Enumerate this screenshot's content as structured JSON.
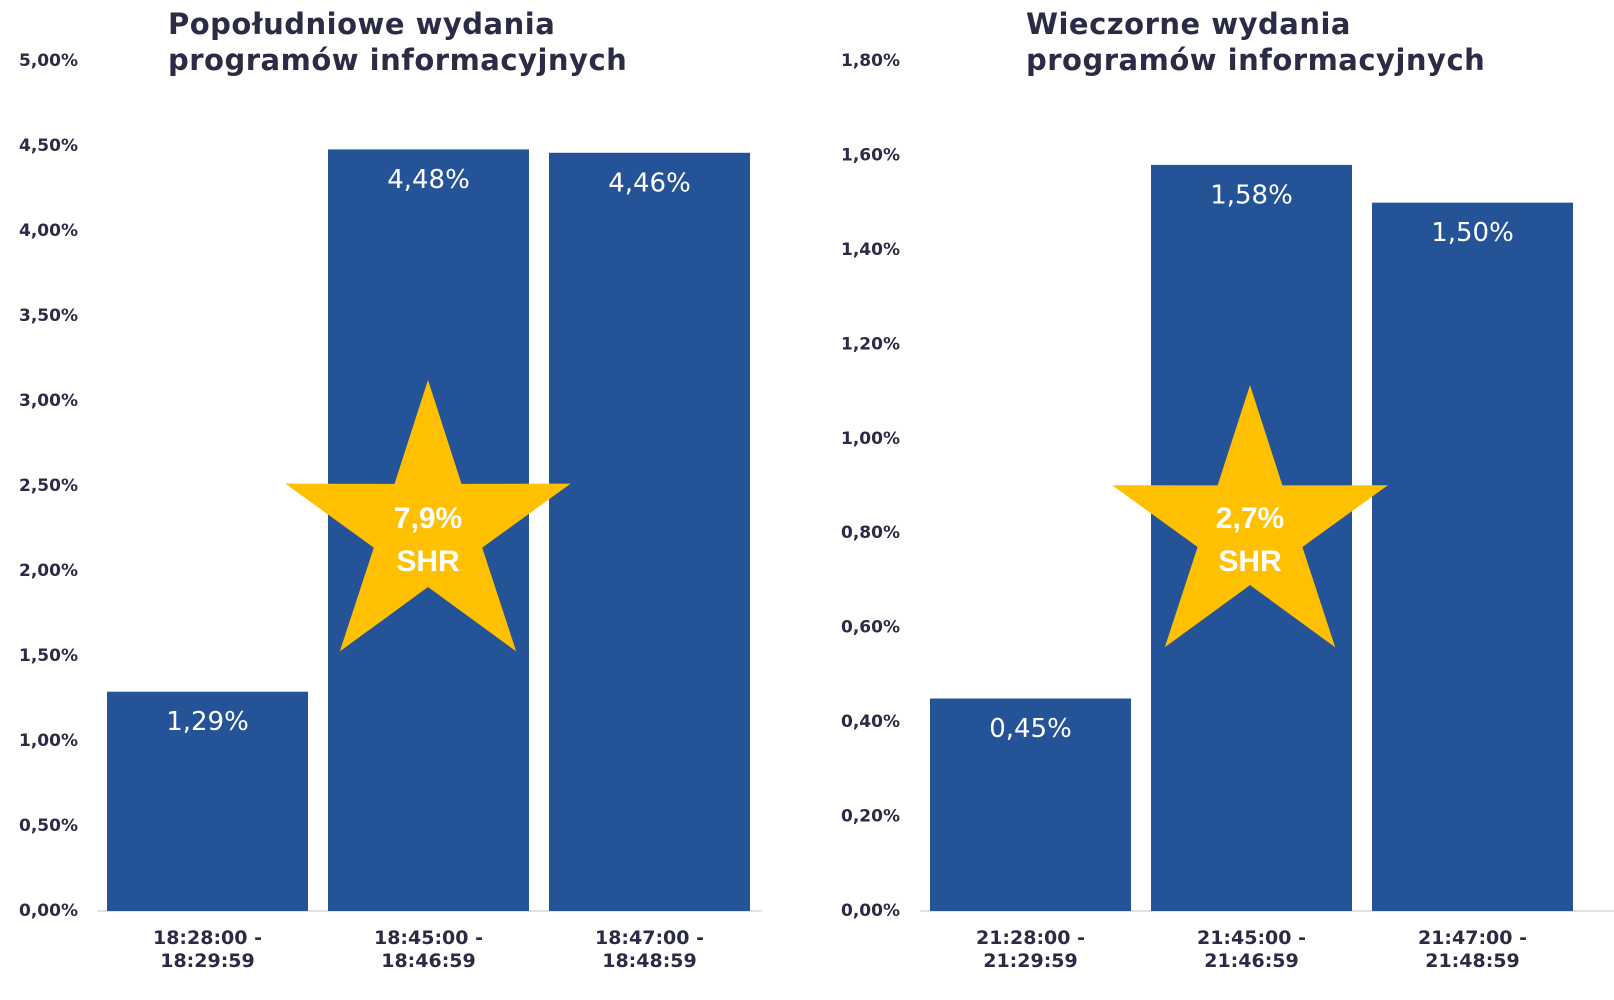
{
  "chart_data": [
    {
      "type": "bar",
      "title": "Popołudniowe wydania programów informacyjnych",
      "categories": [
        "18:28:00 - 18:29:59",
        "18:45:00 - 18:46:59",
        "18:47:00 - 18:48:59"
      ],
      "values": [
        1.29,
        4.48,
        4.46
      ],
      "value_labels": [
        "1,29%",
        "4,48%",
        "4,46%"
      ],
      "color": "#255398",
      "ylim": [
        0,
        5
      ],
      "yticks": [
        {
          "value": 0,
          "label": "0,00%"
        },
        {
          "value": 0.5,
          "label": "0,50%"
        },
        {
          "value": 1,
          "label": "1,00%"
        },
        {
          "value": 1.5,
          "label": "1,50%"
        },
        {
          "value": 2,
          "label": "2,00%"
        },
        {
          "value": 2.5,
          "label": "2,50%"
        },
        {
          "value": 3,
          "label": "3,00%"
        },
        {
          "value": 3.5,
          "label": "3,50%"
        },
        {
          "value": 4,
          "label": "4,00%"
        },
        {
          "value": 4.5,
          "label": "4,50%"
        },
        {
          "value": 5,
          "label": "5,00%"
        }
      ],
      "annotation": {
        "lines": [
          "7,9%",
          "SHR"
        ],
        "color": "#ffc000"
      }
    },
    {
      "type": "bar",
      "title": "Wieczorne wydania programów informacyjnych",
      "categories": [
        "21:28:00 - 21:29:59",
        "21:45:00 - 21:46:59",
        "21:47:00 - 21:48:59"
      ],
      "values": [
        0.45,
        1.58,
        1.5
      ],
      "value_labels": [
        "0,45%",
        "1,58%",
        "1,50%"
      ],
      "color": "#255398",
      "ylim": [
        0,
        1.8
      ],
      "yticks": [
        {
          "value": 0,
          "label": "0,00%"
        },
        {
          "value": 0.2,
          "label": "0,20%"
        },
        {
          "value": 0.4,
          "label": "0,40%"
        },
        {
          "value": 0.6,
          "label": "0,60%"
        },
        {
          "value": 0.8,
          "label": "0,80%"
        },
        {
          "value": 1,
          "label": "1,00%"
        },
        {
          "value": 1.2,
          "label": "1,20%"
        },
        {
          "value": 1.4,
          "label": "1,40%"
        },
        {
          "value": 1.6,
          "label": "1,60%"
        },
        {
          "value": 1.8,
          "label": "1,80%"
        }
      ],
      "annotation": {
        "lines": [
          "2,7%",
          "SHR"
        ],
        "color": "#ffc000"
      }
    }
  ]
}
